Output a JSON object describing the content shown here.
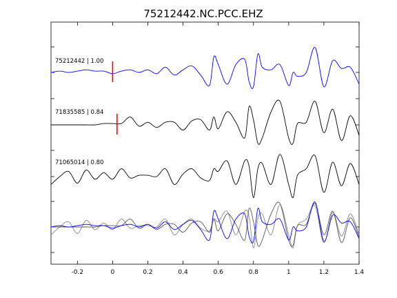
{
  "chart_data": {
    "type": "line",
    "title": "75212442.NC.PCC.EHZ",
    "xlabel": "",
    "ylabel": "",
    "xlim": [
      -0.35,
      1.4
    ],
    "x_ticks": [
      -0.2,
      0,
      0.2,
      0.4,
      0.6,
      0.8,
      1,
      1.2,
      1.4
    ],
    "x_tick_labels": [
      "-0.2",
      "0",
      "0.2",
      "0.4",
      "0.6",
      "0.8",
      "1",
      "1.2",
      "1.4"
    ],
    "grid": false,
    "legend": "none",
    "x": [
      -0.35,
      -0.3,
      -0.25,
      -0.2,
      -0.15,
      -0.1,
      -0.05,
      0.0,
      0.05,
      0.1,
      0.15,
      0.2,
      0.25,
      0.3,
      0.35,
      0.4,
      0.45,
      0.5,
      0.55,
      0.575,
      0.6,
      0.65,
      0.7,
      0.75,
      0.775,
      0.8,
      0.825,
      0.85,
      0.9,
      0.95,
      1.0,
      1.025,
      1.05,
      1.1,
      1.15,
      1.2,
      1.25,
      1.3,
      1.35,
      1.4
    ],
    "series": [
      {
        "name": "75212442 | 1.00",
        "color": "#0000ff",
        "pick_time": 0.0,
        "values": [
          0.0,
          0.05,
          0.0,
          0.05,
          0.1,
          0.05,
          0.05,
          -0.05,
          0.05,
          0.1,
          0.0,
          0.1,
          -0.05,
          0.2,
          -0.1,
          0.1,
          0.25,
          -0.1,
          -0.5,
          0.6,
          0.3,
          -0.45,
          0.3,
          0.5,
          -0.35,
          -0.55,
          0.7,
          0.2,
          0.1,
          0.3,
          -0.5,
          0.0,
          -0.15,
          0.0,
          0.95,
          -0.55,
          0.45,
          0.15,
          0.2,
          -0.45
        ]
      },
      {
        "name": "71835585 | 0.84",
        "color": "#000000",
        "pick_time": 0.025,
        "values": [
          0.0,
          0.0,
          0.0,
          0.0,
          0.0,
          0.0,
          0.05,
          0.05,
          0.05,
          0.3,
          -0.05,
          0.1,
          -0.1,
          0.1,
          0.1,
          -0.2,
          0.15,
          0.2,
          -0.2,
          0.3,
          -0.15,
          0.5,
          0.1,
          -0.5,
          0.7,
          0.2,
          -0.7,
          -0.5,
          0.5,
          0.9,
          -0.5,
          -0.7,
          0.05,
          0.1,
          0.9,
          -0.3,
          0.6,
          -0.6,
          0.35,
          -0.4
        ]
      },
      {
        "name": "71065014 | 0.80",
        "color": "#000000",
        "pick_time": null,
        "values": [
          -0.3,
          0.0,
          0.2,
          -0.25,
          0.25,
          -0.1,
          0.15,
          -0.1,
          0.3,
          -0.05,
          0.05,
          0.05,
          0.0,
          0.3,
          -0.3,
          0.1,
          0.3,
          -0.05,
          -0.15,
          0.3,
          0.2,
          0.6,
          -0.3,
          0.6,
          0.4,
          -0.8,
          0.3,
          0.5,
          -0.3,
          0.85,
          -0.3,
          -0.8,
          0.05,
          0.3,
          0.8,
          -0.6,
          0.55,
          -0.35,
          0.5,
          -0.3
        ]
      }
    ],
    "overlay": {
      "description_colors": [
        "#0000ff",
        "#666666",
        "#888888",
        "#999999"
      ]
    }
  },
  "trace_labels": [
    "75212442 | 1.00",
    "71835585 | 0.84",
    "71065014 | 0.80"
  ]
}
